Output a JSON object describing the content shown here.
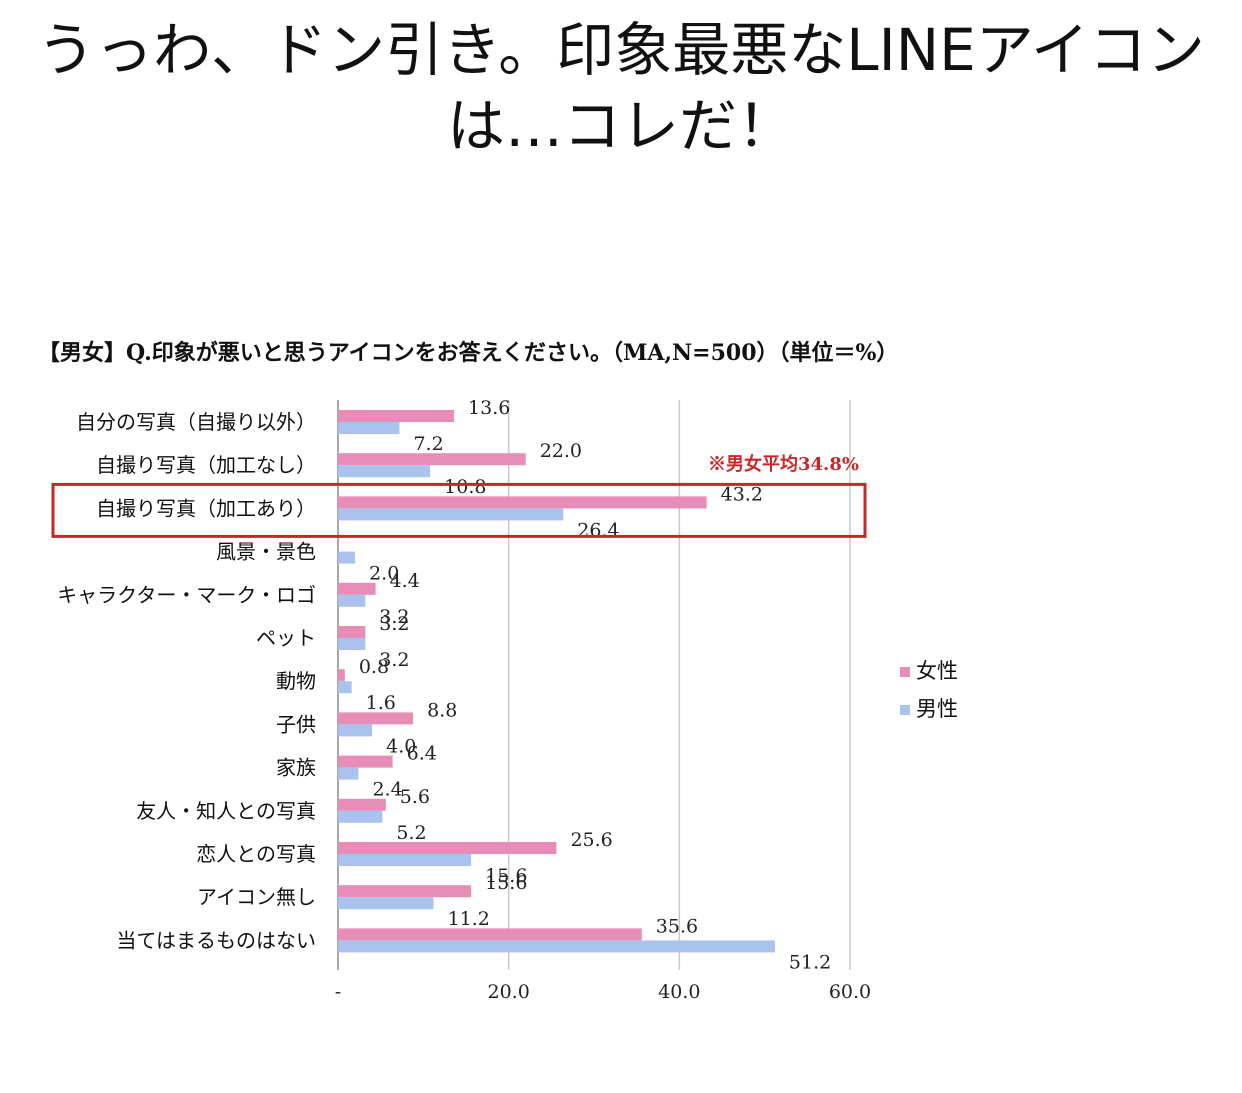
{
  "headline": {
    "line1": "うっわ、ドン引き。印象最悪なLINEアイコン",
    "line2": "は…コレだ！"
  },
  "chart_data": {
    "type": "bar",
    "orientation": "horizontal",
    "title": "【男女】Q.印象が悪いと思うアイコンをお答えください。（MA,N=500）（単位＝%）",
    "categories": [
      "自分の写真（自撮り以外）",
      "自撮り写真（加工なし）",
      "自撮り写真（加工あり）",
      "風景・景色",
      "キャラクター・マーク・ロゴ",
      "ペット",
      "動物",
      "子供",
      "家族",
      "友人・知人との写真",
      "恋人との写真",
      "アイコン無し",
      "当てはまるものはない"
    ],
    "series": [
      {
        "name": "女性",
        "color": "#e88db8",
        "values": [
          13.6,
          22.0,
          43.2,
          0,
          4.4,
          3.2,
          0.8,
          8.8,
          6.4,
          5.6,
          25.6,
          15.6,
          35.6
        ],
        "labels": [
          "13.6",
          "22.0",
          "43.2",
          "",
          "4.4",
          "3.2",
          "0.8",
          "8.8",
          "6.4",
          "5.6",
          "25.6",
          "15.6",
          "35.6"
        ]
      },
      {
        "name": "男性",
        "color": "#a9c2ee",
        "values": [
          7.2,
          10.8,
          26.4,
          2.0,
          3.2,
          3.2,
          1.6,
          4.0,
          2.4,
          5.2,
          15.6,
          11.2,
          51.2
        ],
        "labels": [
          "7.2",
          "10.8",
          "26.4",
          "2.0",
          "3.2",
          "3.2",
          "1.6",
          "4.0",
          "2.4",
          "5.2",
          "15.6",
          "11.2",
          "51.2"
        ]
      }
    ],
    "xlim": [
      0,
      60
    ],
    "xticks": [
      "-",
      "20.0",
      "40.0",
      "60.0"
    ],
    "grid": true,
    "legend": "right",
    "highlight_category": "自撮り写真（加工あり）",
    "highlight_color": "#c62828",
    "annotation": "※男女平均34.8%"
  }
}
